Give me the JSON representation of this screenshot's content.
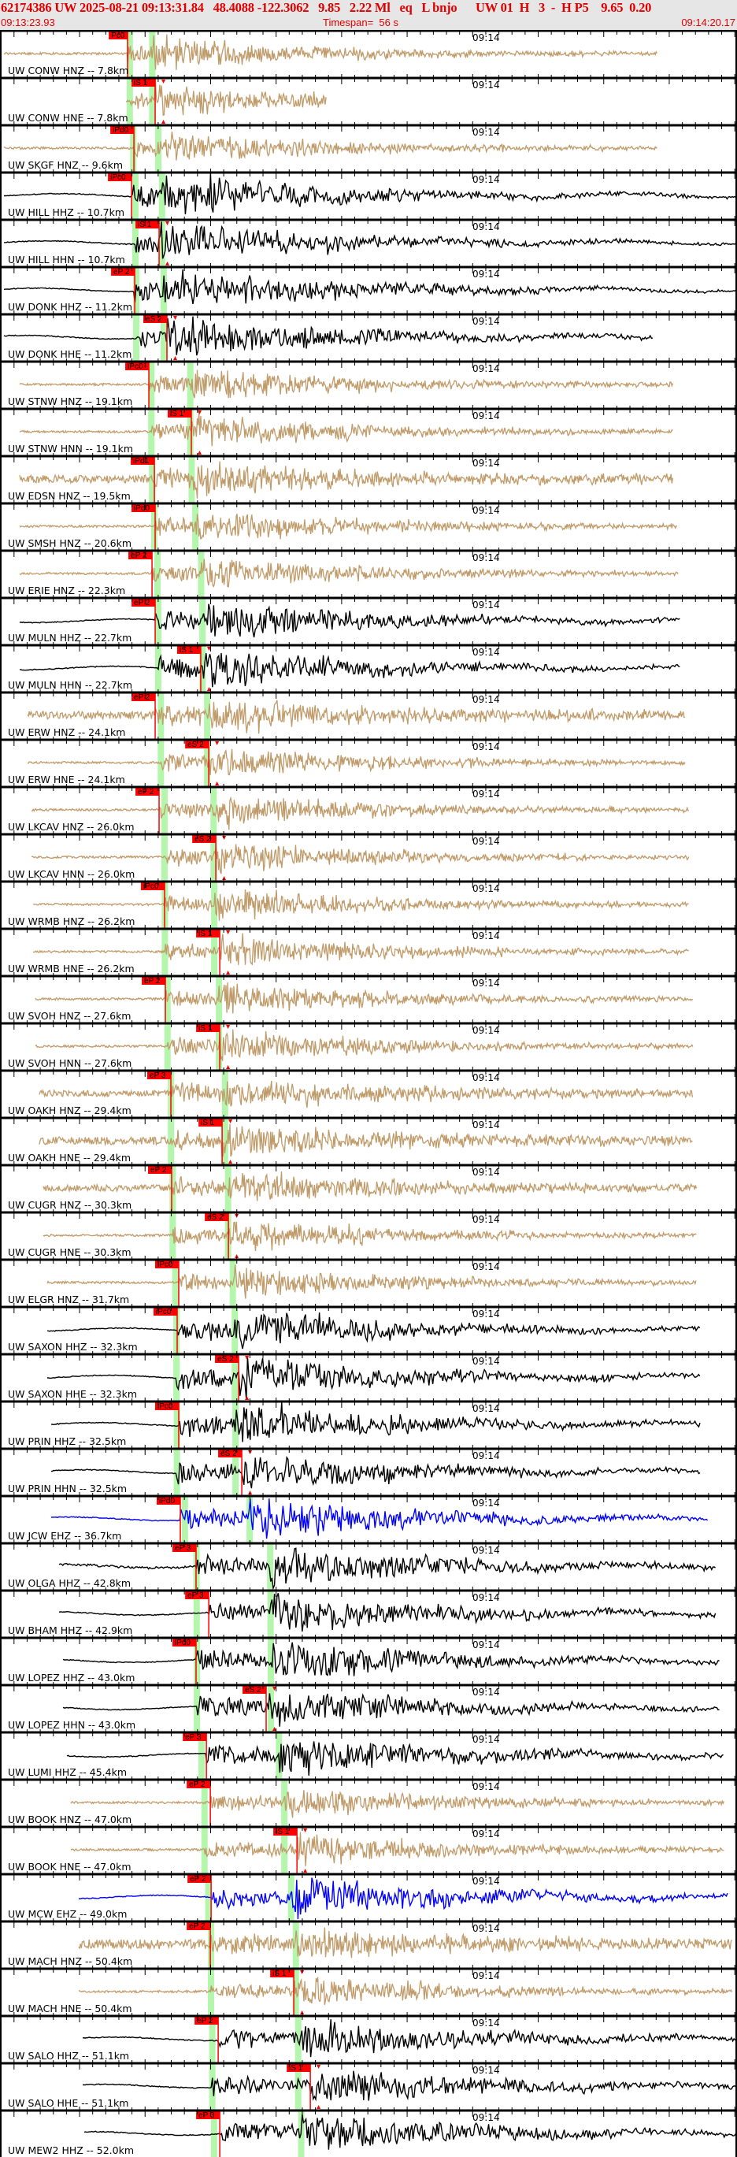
{
  "header": {
    "title": "62174386 UW 2025-08-21 09:13:31.84   48.4088 -122.3062   9.85   2.22 Ml   eq   L bnjo      UW 01  H   3  -  H P5    9.65  0.20",
    "start_time": "09:13:23.93",
    "timespan": "Timespan=  56 s",
    "end_time": "09:14:20.17",
    "timespan_seconds": 56.24
  },
  "minute_label": "09:14",
  "colors": {
    "accelerometer": "#c09b6a",
    "broadband": "#000000",
    "short_period": "#0000ff",
    "pick": "#ff0000",
    "predicted": "#b4f7ac",
    "header_bg": "#e6e6e6"
  },
  "traces": [
    {
      "label": "UW CONW HNZ -- 7.8km",
      "dist_km": 7.8,
      "type": "accelerometer",
      "pick": {
        "phase": "Pc0",
        "time": "09:13:33.67"
      }
    },
    {
      "label": "UW CONW HNE -- 7.8km",
      "dist_km": 7.8,
      "type": "accelerometer",
      "pick": {
        "phase": "iS 1",
        "time": "09:13:35.77"
      }
    },
    {
      "label": "UW SKGF HNZ -- 9.6km",
      "dist_km": 9.6,
      "type": "accelerometer",
      "pick": {
        "phase": "iPd0",
        "time": "09:13:34.15"
      }
    },
    {
      "label": "UW HILL HHZ -- 10.7km",
      "dist_km": 10.7,
      "type": "broadband",
      "pick": {
        "phase": "iPc0",
        "time": "09:13:33.97"
      }
    },
    {
      "label": "UW HILL HHN -- 10.7km",
      "dist_km": 10.7,
      "type": "broadband",
      "pick": {
        "phase": "iS 1",
        "time": "09:13:36.07"
      }
    },
    {
      "label": "UW DONK HHZ -- 11.2km",
      "dist_km": 11.2,
      "type": "broadband",
      "pick": {
        "phase": "eP 2",
        "time": "09:13:34.21"
      }
    },
    {
      "label": "UW DONK HHE -- 11.2km",
      "dist_km": 11.2,
      "type": "broadband",
      "pick": {
        "phase": "eS 2",
        "time": "09:13:36.67"
      }
    },
    {
      "label": "UW STNW HNZ -- 19.1km",
      "dist_km": 19.1,
      "type": "accelerometer",
      "pick": {
        "phase": "iPc0",
        "time": "09:13:35.29"
      }
    },
    {
      "label": "UW STNW HNN -- 19.1km",
      "dist_km": 19.1,
      "type": "accelerometer",
      "pick": {
        "phase": "iS 1",
        "time": "09:13:38.53"
      }
    },
    {
      "label": "UW EDSN HNZ -- 19.5km",
      "dist_km": 19.5,
      "type": "accelerometer",
      "pick": {
        "phase": "iPd1",
        "time": "09:13:35.71"
      }
    },
    {
      "label": "UW SMSH HNZ -- 20.6km",
      "dist_km": 20.6,
      "type": "accelerometer",
      "pick": {
        "phase": "iPd0",
        "time": "09:13:35.77"
      }
    },
    {
      "label": "UW ERIE HNZ -- 22.3km",
      "dist_km": 22.3,
      "type": "accelerometer",
      "pick": {
        "phase": "eP 2",
        "time": "09:13:35.53"
      }
    },
    {
      "label": "UW MULN HHZ -- 22.7km",
      "dist_km": 22.7,
      "type": "broadband",
      "pick": {
        "phase": "eP 2",
        "time": "09:13:35.77"
      }
    },
    {
      "label": "UW MULN HHN -- 22.7km",
      "dist_km": 22.7,
      "type": "broadband",
      "pick": {
        "phase": "iS 1",
        "time": "09:13:39.25"
      }
    },
    {
      "label": "UW ERW HNZ -- 24.1km",
      "dist_km": 24.1,
      "type": "accelerometer",
      "pick": {
        "phase": "eP 2",
        "time": "09:13:35.77"
      }
    },
    {
      "label": "UW ERW HNE -- 24.1km",
      "dist_km": 24.1,
      "type": "accelerometer",
      "pick": {
        "phase": "eS 2",
        "time": "09:13:39.86"
      }
    },
    {
      "label": "UW LKCAV HNZ -- 26.0km",
      "dist_km": 26.0,
      "type": "accelerometer",
      "pick": {
        "phase": "eP 2",
        "time": "09:13:36.07"
      }
    },
    {
      "label": "UW LKCAV HNN -- 26.0km",
      "dist_km": 26.0,
      "type": "accelerometer",
      "pick": {
        "phase": "eS 2",
        "time": "09:13:40.40"
      }
    },
    {
      "label": "UW WRMB HNZ -- 26.2km",
      "dist_km": 26.2,
      "type": "accelerometer",
      "pick": {
        "phase": "iPc0",
        "time": "09:13:36.49"
      }
    },
    {
      "label": "UW WRMB HNE -- 26.2km",
      "dist_km": 26.2,
      "type": "accelerometer",
      "pick": {
        "phase": "iS 1",
        "time": "09:13:40.70"
      }
    },
    {
      "label": "UW SVOH HNZ -- 27.6km",
      "dist_km": 27.6,
      "type": "accelerometer",
      "pick": {
        "phase": "eP 2",
        "time": "09:13:36.55"
      }
    },
    {
      "label": "UW SVOH HNN -- 27.6km",
      "dist_km": 27.6,
      "type": "accelerometer",
      "pick": {
        "phase": "iS 1",
        "time": "09:13:40.70"
      }
    },
    {
      "label": "UW OAKH HNZ -- 29.4km",
      "dist_km": 29.4,
      "type": "accelerometer",
      "pick": {
        "phase": "eP 3",
        "time": "09:13:36.97"
      }
    },
    {
      "label": "UW OAKH HNE -- 29.4km",
      "dist_km": 29.4,
      "type": "accelerometer",
      "pick": {
        "phase": "iS 1",
        "time": "09:13:40.88"
      }
    },
    {
      "label": "UW CUGR HNZ -- 30.3km",
      "dist_km": 30.3,
      "type": "accelerometer",
      "pick": {
        "phase": "eP 2",
        "time": "09:13:37.03"
      }
    },
    {
      "label": "UW CUGR HNE -- 30.3km",
      "dist_km": 30.3,
      "type": "accelerometer",
      "pick": {
        "phase": "eS 2",
        "time": "09:13:41.36"
      }
    },
    {
      "label": "UW ELGR HNZ -- 31.7km",
      "dist_km": 31.7,
      "type": "accelerometer",
      "pick": {
        "phase": "iPc0",
        "time": "09:13:37.57"
      }
    },
    {
      "label": "UW SAXON HHZ -- 32.3km",
      "dist_km": 32.3,
      "type": "broadband",
      "pick": {
        "phase": "iPc0",
        "time": "09:13:37.45"
      }
    },
    {
      "label": "UW SAXON HHE -- 32.3km",
      "dist_km": 32.3,
      "type": "broadband",
      "pick": {
        "phase": "eS 2",
        "time": "09:13:42.14"
      }
    },
    {
      "label": "UW PRIN HHZ -- 32.5km",
      "dist_km": 32.5,
      "type": "broadband",
      "pick": {
        "phase": "iPc0",
        "time": "09:13:37.57"
      }
    },
    {
      "label": "UW PRIN HHN -- 32.5km",
      "dist_km": 32.5,
      "type": "broadband",
      "pick": {
        "phase": "eS 2",
        "time": "09:13:42.38"
      }
    },
    {
      "label": "UW JCW EHZ -- 36.7km",
      "dist_km": 36.7,
      "type": "short_period",
      "pick": {
        "phase": "iPd0",
        "time": "09:13:37.69"
      }
    },
    {
      "label": "UW OLGA HHZ -- 42.8km",
      "dist_km": 42.8,
      "type": "broadband",
      "pick": {
        "phase": "eP 3",
        "time": "09:13:38.89"
      }
    },
    {
      "label": "UW BHAM HHZ -- 42.9km",
      "dist_km": 42.9,
      "type": "broadband",
      "pick": {
        "phase": "eP 3",
        "time": "09:13:39.86"
      }
    },
    {
      "label": "UW LOPEZ HHZ -- 43.0km",
      "dist_km": 43.0,
      "type": "broadband",
      "pick": {
        "phase": "iPd0",
        "time": "09:13:38.89"
      }
    },
    {
      "label": "UW LOPEZ HHN -- 43.0km",
      "dist_km": 43.0,
      "type": "broadband",
      "pick": {
        "phase": "eS 2",
        "time": "09:13:44.24"
      }
    },
    {
      "label": "UW LUMI HHZ -- 45.4km",
      "dist_km": 45.4,
      "type": "broadband",
      "pick": {
        "phase": "eP 3",
        "time": "09:13:39.68"
      }
    },
    {
      "label": "UW BOOK HNZ -- 47.0km",
      "dist_km": 47.0,
      "type": "accelerometer",
      "pick": {
        "phase": "eP 2",
        "time": "09:13:39.98"
      }
    },
    {
      "label": "UW BOOK HNE -- 47.0km",
      "dist_km": 47.0,
      "type": "accelerometer",
      "pick": {
        "phase": "iS 1",
        "time": "09:13:46.59"
      }
    },
    {
      "label": "UW MCW EHZ -- 49.0km",
      "dist_km": 49.0,
      "type": "short_period",
      "pick": {
        "phase": "eP 2",
        "time": "09:13:40.04"
      }
    },
    {
      "label": "UW MACH HNZ -- 50.4km",
      "dist_km": 50.4,
      "type": "accelerometer",
      "pick": {
        "phase": "eP 2",
        "time": "09:13:39.98"
      }
    },
    {
      "label": "UW MACH HNE -- 50.4km",
      "dist_km": 50.4,
      "type": "accelerometer",
      "pick": {
        "phase": "iS 1",
        "time": "09:13:46.35"
      }
    },
    {
      "label": "UW SALO HHZ -- 51.1km",
      "dist_km": 51.1,
      "type": "broadband",
      "pick": {
        "phase": "eP 2",
        "time": "09:13:40.58"
      }
    },
    {
      "label": "UW SALO HHE -- 51.1km",
      "dist_km": 51.1,
      "type": "broadband",
      "pick": {
        "phase": "iS 1",
        "time": "09:13:47.61"
      }
    },
    {
      "label": "UW MEW2 HHZ -- 52.0km",
      "dist_km": 52.0,
      "type": "broadband",
      "pick": {
        "phase": "eP 3",
        "time": "09:13:40.70"
      }
    }
  ]
}
